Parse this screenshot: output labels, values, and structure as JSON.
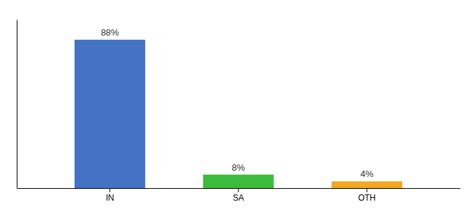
{
  "chart_data": {
    "type": "bar",
    "categories": [
      "IN",
      "SA",
      "OTH"
    ],
    "values": [
      88,
      8,
      4
    ],
    "value_labels": [
      "88%",
      "8%",
      "4%"
    ],
    "colors": [
      "#4472c4",
      "#3dbb3d",
      "#f5a623"
    ],
    "ylim": [
      0,
      100
    ],
    "data_labels": true,
    "tick_labels": "x"
  }
}
